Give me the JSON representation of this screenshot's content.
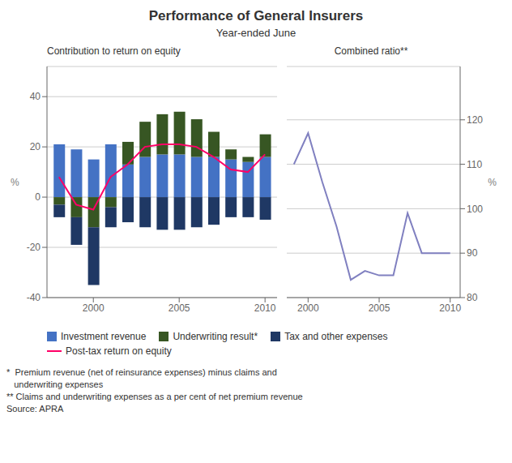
{
  "chart_data": [
    {
      "type": "bar",
      "title": "Performance of General Insurers",
      "subtitle": "Year-ended June",
      "annotations": [
        "Contribution to return on equity"
      ],
      "footnotes": [
        "*  Premium revenue (net of reinsurance expenses) minus claims and",
        "   underwriting expenses",
        "** Claims and underwriting expenses as a per cent of net premium revenue",
        "Source: APRA"
      ],
      "ylabel": "%",
      "x": [
        1998,
        1999,
        2000,
        2001,
        2002,
        2003,
        2004,
        2005,
        2006,
        2007,
        2008,
        2009,
        2010
      ],
      "xlim": [
        1997.3,
        2010.7
      ],
      "xticks": [
        2000,
        2005,
        2010
      ],
      "ylim": [
        -40,
        52
      ],
      "yticks": [
        -40,
        -20,
        0,
        20,
        40
      ],
      "stacked": true,
      "grid": true,
      "legend": "bottom",
      "series": [
        {
          "name": "Investment revenue",
          "type": "bar",
          "color": "#4472C4",
          "values": [
            21,
            19,
            15,
            21,
            13,
            16,
            17,
            17,
            16,
            16,
            15,
            14,
            16
          ]
        },
        {
          "name": "Underwriting result*",
          "type": "bar",
          "color": "#375623",
          "values": [
            -3,
            -8,
            -12,
            -4,
            9,
            14,
            16,
            17,
            15,
            10,
            4,
            2,
            9
          ]
        },
        {
          "name": "Tax and other expenses",
          "type": "bar",
          "color": "#1F3864",
          "values": [
            -5,
            -11,
            -23,
            -8,
            -10,
            -12,
            -13,
            -13,
            -12,
            -11,
            -8,
            -8,
            -9
          ]
        },
        {
          "name": "Post-tax return on equity",
          "type": "line",
          "color": "#FF0066",
          "values": [
            8,
            -3,
            -5,
            8,
            13,
            20,
            21,
            21,
            20,
            16,
            11,
            10,
            17
          ]
        }
      ]
    },
    {
      "type": "line",
      "title": "Combined ratio**",
      "ylabel": "%",
      "x": [
        1999,
        2000,
        2001,
        2002,
        2003,
        2004,
        2005,
        2006,
        2007,
        2008,
        2009,
        2010
      ],
      "xlim": [
        1998.5,
        2010.7
      ],
      "xticks": [
        2000,
        2005,
        2010
      ],
      "ylim": [
        80,
        132
      ],
      "yticks": [
        80,
        90,
        100,
        110,
        120
      ],
      "grid": true,
      "color": "#8080C0",
      "values": [
        110,
        117,
        106,
        96,
        84,
        86,
        85,
        85,
        99,
        90,
        90,
        90
      ]
    }
  ]
}
